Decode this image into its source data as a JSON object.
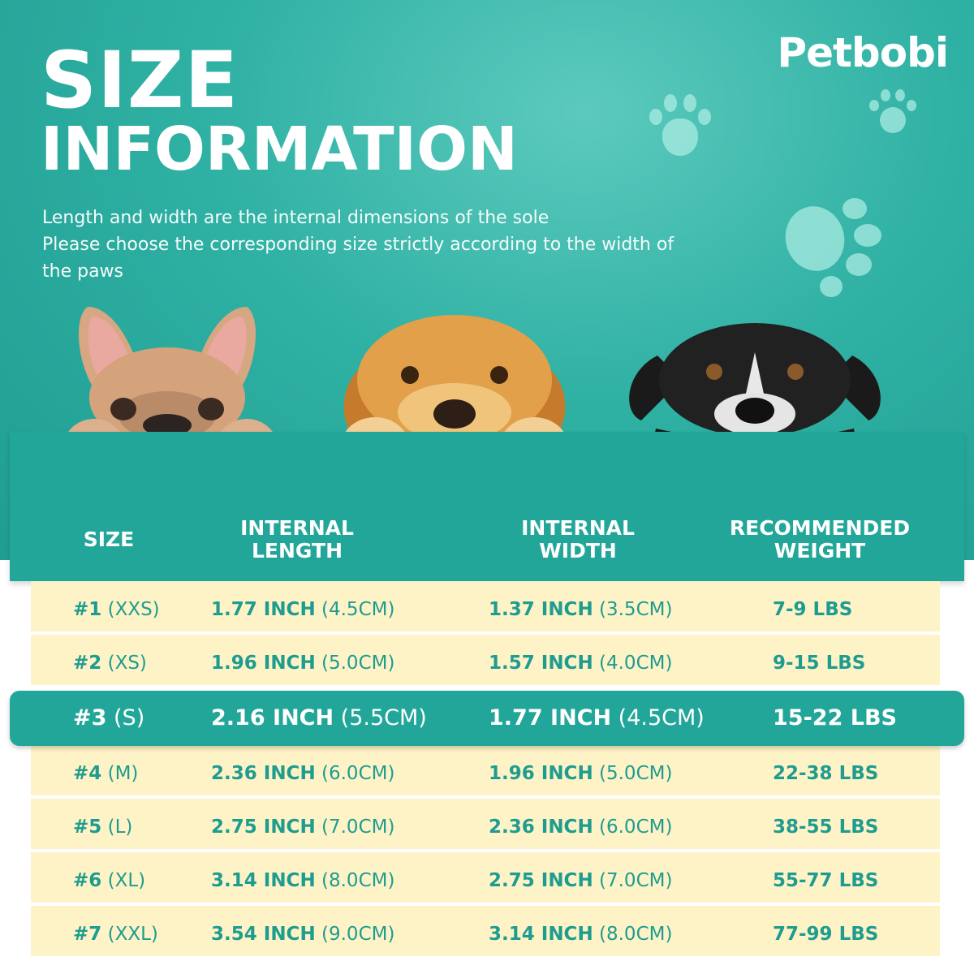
{
  "brand": "Petbobi",
  "title": {
    "line1": "SIZE",
    "line2": "INFORMATION"
  },
  "subtitle": {
    "line1": "Length and width are the internal dimensions of the sole",
    "line2": "Please choose the corresponding size strictly according to the width of the paws"
  },
  "colors": {
    "teal": "#22a699",
    "row_bg": "#fdf3c6",
    "text_teal": "#1f9c90",
    "white": "#ffffff"
  },
  "table": {
    "headers": {
      "size": "SIZE",
      "length_1": "INTERNAL",
      "length_2": "LENGTH",
      "width_1": "INTERNAL",
      "width_2": "WIDTH",
      "weight_1": "RECOMMENDED",
      "weight_2": "WEIGHT"
    },
    "rows": [
      {
        "num": "#1",
        "label": "(XXS)",
        "length_in": "1.77 INCH",
        "length_cm": "(4.5CM)",
        "width_in": "1.37 INCH",
        "width_cm": "(3.5CM)",
        "weight": "7-9 LBS"
      },
      {
        "num": "#2",
        "label": "(XS)",
        "length_in": "1.96 INCH",
        "length_cm": "(5.0CM)",
        "width_in": "1.57 INCH",
        "width_cm": "(4.0CM)",
        "weight": "9-15 LBS"
      },
      {
        "num": "#3",
        "label": "(S)",
        "length_in": "2.16 INCH",
        "length_cm": "(5.5CM)",
        "width_in": "1.77 INCH",
        "width_cm": "(4.5CM)",
        "weight": "15-22 LBS"
      },
      {
        "num": "#4",
        "label": "(M)",
        "length_in": "2.36 INCH",
        "length_cm": "(6.0CM)",
        "width_in": "1.96 INCH",
        "width_cm": "(5.0CM)",
        "weight": "22-38 LBS"
      },
      {
        "num": "#5",
        "label": "(L)",
        "length_in": "2.75 INCH",
        "length_cm": "(7.0CM)",
        "width_in": "2.36 INCH",
        "width_cm": "(6.0CM)",
        "weight": "38-55 LBS"
      },
      {
        "num": "#6",
        "label": "(XL)",
        "length_in": "3.14 INCH",
        "length_cm": "(8.0CM)",
        "width_in": "2.75 INCH",
        "width_cm": "(7.0CM)",
        "weight": "55-77 LBS"
      },
      {
        "num": "#7",
        "label": "(XXL)",
        "length_in": "3.54 INCH",
        "length_cm": "(9.0CM)",
        "width_in": "3.14 INCH",
        "width_cm": "(8.0CM)",
        "weight": "77-99 LBS"
      }
    ]
  }
}
